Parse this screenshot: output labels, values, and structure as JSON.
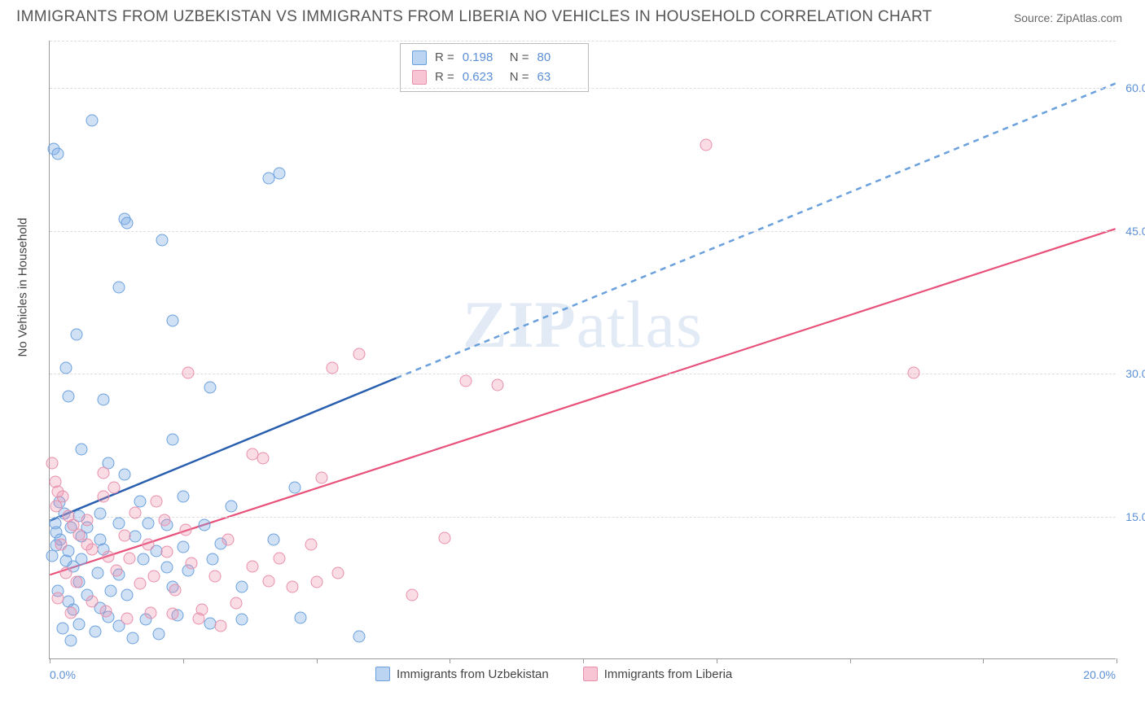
{
  "title": "IMMIGRANTS FROM UZBEKISTAN VS IMMIGRANTS FROM LIBERIA NO VEHICLES IN HOUSEHOLD CORRELATION CHART",
  "source": "Source: ZipAtlas.com",
  "y_axis_label": "No Vehicles in Household",
  "watermark_bold": "ZIP",
  "watermark_rest": "atlas",
  "chart": {
    "type": "scatter",
    "xlim": [
      0,
      20
    ],
    "ylim": [
      0,
      65
    ],
    "x_origin_label": "0.0%",
    "x_max_label": "20.0%",
    "x_ticks": [
      0,
      2.5,
      5,
      7.5,
      10,
      12.5,
      15,
      17.5,
      20
    ],
    "y_gridlines": [
      {
        "value": 15,
        "label": "15.0%"
      },
      {
        "value": 30,
        "label": "30.0%"
      },
      {
        "value": 45,
        "label": "45.0%"
      },
      {
        "value": 60,
        "label": "60.0%"
      }
    ],
    "background_color": "#ffffff",
    "grid_color": "#dddddd",
    "axis_color": "#999999",
    "label_color": "#5b8fd6",
    "series": [
      {
        "name": "Immigrants from Uzbekistan",
        "fill": "rgba(120,170,230,0.35)",
        "stroke": "#6aa0dc",
        "swatch_fill": "rgba(120,170,230,0.5)",
        "swatch_stroke": "#6aa0dc",
        "r_label": "R =",
        "r_value": "0.198",
        "n_label": "N =",
        "n_value": "80",
        "trend": {
          "solid": {
            "x1": 0,
            "y1": 14.5,
            "x2": 6.5,
            "y2": 29.5
          },
          "dashed": {
            "x1": 6.5,
            "y1": 29.5,
            "x2": 20,
            "y2": 60.5
          },
          "solid_color": "#2a5fb0",
          "dashed_color": "#6aa0dc",
          "width": 2.5
        },
        "points": [
          [
            0.08,
            53.5
          ],
          [
            0.15,
            53
          ],
          [
            0.8,
            56.5
          ],
          [
            1.4,
            46.2
          ],
          [
            1.45,
            45.8
          ],
          [
            1.3,
            39
          ],
          [
            0.5,
            34
          ],
          [
            0.3,
            30.5
          ],
          [
            0.35,
            27.5
          ],
          [
            1.0,
            27.2
          ],
          [
            0.6,
            22
          ],
          [
            1.1,
            20.5
          ],
          [
            1.4,
            19.3
          ],
          [
            1.7,
            16.5
          ],
          [
            4.3,
            51
          ],
          [
            4.1,
            50.5
          ],
          [
            2.1,
            44
          ],
          [
            2.3,
            35.5
          ],
          [
            3.0,
            28.5
          ],
          [
            2.3,
            23
          ],
          [
            2.5,
            17
          ],
          [
            2.2,
            14
          ],
          [
            4.6,
            18
          ],
          [
            0.1,
            14.2
          ],
          [
            0.12,
            13.3
          ],
          [
            0.2,
            12.5
          ],
          [
            0.35,
            11.3
          ],
          [
            0.05,
            10.8
          ],
          [
            0.3,
            10.3
          ],
          [
            0.45,
            9.7
          ],
          [
            0.6,
            12.8
          ],
          [
            0.7,
            13.8
          ],
          [
            0.95,
            12.5
          ],
          [
            1.0,
            11.5
          ],
          [
            0.55,
            8.0
          ],
          [
            0.15,
            7.1
          ],
          [
            0.35,
            6.0
          ],
          [
            0.45,
            5.1
          ],
          [
            0.7,
            6.7
          ],
          [
            0.95,
            5.3
          ],
          [
            1.15,
            7.1
          ],
          [
            1.3,
            8.8
          ],
          [
            1.45,
            6.7
          ],
          [
            1.6,
            12.8
          ],
          [
            1.75,
            10.4
          ],
          [
            1.85,
            14.2
          ],
          [
            2.0,
            11.3
          ],
          [
            2.2,
            9.6
          ],
          [
            2.3,
            7.5
          ],
          [
            2.5,
            11.7
          ],
          [
            2.6,
            9.2
          ],
          [
            2.9,
            14.0
          ],
          [
            3.05,
            10.4
          ],
          [
            3.2,
            12.1
          ],
          [
            3.4,
            16.0
          ],
          [
            3.6,
            7.5
          ],
          [
            0.55,
            3.6
          ],
          [
            0.85,
            2.8
          ],
          [
            1.1,
            4.4
          ],
          [
            1.3,
            3.4
          ],
          [
            1.55,
            2.1
          ],
          [
            1.8,
            4.1
          ],
          [
            0.25,
            3.2
          ],
          [
            0.4,
            1.9
          ],
          [
            2.05,
            2.6
          ],
          [
            2.4,
            4.5
          ],
          [
            3.0,
            3.7
          ],
          [
            3.6,
            4.1
          ],
          [
            4.7,
            4.3
          ],
          [
            5.8,
            2.3
          ],
          [
            4.2,
            12.5
          ],
          [
            0.95,
            15.2
          ],
          [
            0.4,
            13.8
          ],
          [
            0.6,
            10.4
          ],
          [
            0.9,
            9.0
          ],
          [
            0.55,
            15.0
          ],
          [
            1.3,
            14.2
          ],
          [
            0.18,
            16.4
          ],
          [
            0.28,
            15.2
          ],
          [
            0.12,
            11.9
          ]
        ]
      },
      {
        "name": "Immigrants from Liberia",
        "fill": "rgba(240,140,170,0.3)",
        "stroke": "#e88fab",
        "swatch_fill": "rgba(240,140,170,0.5)",
        "swatch_stroke": "#e88fab",
        "r_label": "R =",
        "r_value": "0.623",
        "n_label": "N =",
        "n_value": "63",
        "trend": {
          "solid": {
            "x1": 0,
            "y1": 8.8,
            "x2": 20,
            "y2": 45.2
          },
          "dashed": null,
          "solid_color": "#e8517a",
          "width": 2.2
        },
        "points": [
          [
            12.3,
            54
          ],
          [
            16.2,
            30
          ],
          [
            7.8,
            29.2
          ],
          [
            8.4,
            28.7
          ],
          [
            5.3,
            30.5
          ],
          [
            5.8,
            32
          ],
          [
            2.6,
            30
          ],
          [
            3.8,
            21.5
          ],
          [
            4.0,
            21.0
          ],
          [
            5.1,
            19.0
          ],
          [
            0.05,
            20.5
          ],
          [
            0.1,
            18.6
          ],
          [
            0.15,
            17.5
          ],
          [
            0.25,
            17.0
          ],
          [
            0.12,
            16.0
          ],
          [
            0.35,
            15.0
          ],
          [
            0.45,
            14.0
          ],
          [
            0.55,
            13.0
          ],
          [
            0.7,
            12.0
          ],
          [
            0.8,
            11.5
          ],
          [
            1.0,
            19.5
          ],
          [
            1.0,
            17.0
          ],
          [
            1.2,
            18.0
          ],
          [
            1.4,
            12.9
          ],
          [
            1.1,
            10.7
          ],
          [
            1.25,
            9.2
          ],
          [
            1.5,
            10.5
          ],
          [
            1.7,
            7.9
          ],
          [
            1.85,
            12.0
          ],
          [
            1.95,
            8.6
          ],
          [
            2.15,
            14.5
          ],
          [
            2.2,
            11.2
          ],
          [
            2.35,
            7.2
          ],
          [
            2.55,
            13.5
          ],
          [
            2.65,
            10.0
          ],
          [
            2.85,
            5.1
          ],
          [
            3.1,
            8.6
          ],
          [
            3.35,
            12.5
          ],
          [
            3.5,
            5.8
          ],
          [
            3.8,
            9.7
          ],
          [
            4.1,
            8.1
          ],
          [
            4.3,
            10.5
          ],
          [
            4.55,
            7.5
          ],
          [
            4.9,
            12.0
          ],
          [
            5.0,
            8.0
          ],
          [
            5.4,
            9.0
          ],
          [
            6.8,
            6.7
          ],
          [
            7.4,
            12.7
          ],
          [
            0.8,
            6.0
          ],
          [
            1.05,
            5.0
          ],
          [
            1.45,
            4.2
          ],
          [
            1.9,
            4.8
          ],
          [
            2.3,
            4.7
          ],
          [
            2.8,
            4.2
          ],
          [
            3.2,
            3.4
          ],
          [
            0.3,
            9.0
          ],
          [
            0.5,
            8.0
          ],
          [
            0.15,
            6.3
          ],
          [
            0.4,
            4.8
          ],
          [
            1.6,
            15.3
          ],
          [
            2.0,
            16.5
          ],
          [
            0.7,
            14.5
          ],
          [
            0.22,
            12.0
          ]
        ]
      }
    ]
  }
}
